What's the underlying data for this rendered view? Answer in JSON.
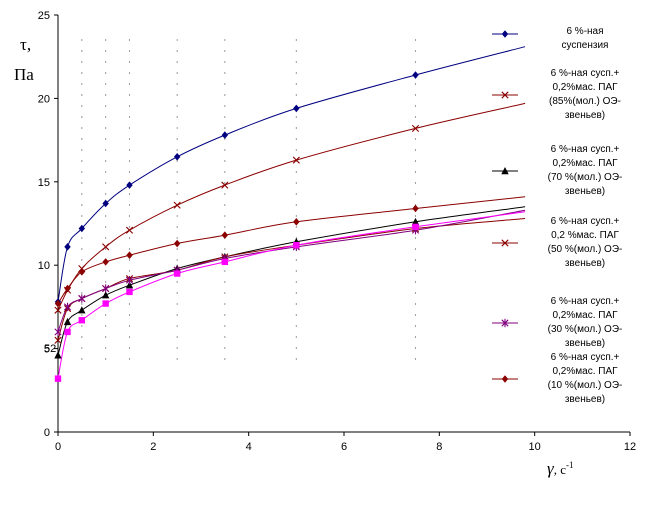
{
  "chart_data": {
    "type": "line",
    "title": "",
    "ylabel_lines": [
      "τ,",
      "Па"
    ],
    "xlabel_symbol": "γ",
    "xlabel_unit": ", с",
    "xlabel_exp": "-1",
    "xlim": [
      0,
      12
    ],
    "ylim": [
      0,
      25
    ],
    "xticks": [
      "0",
      "2",
      "4",
      "6",
      "8",
      "10",
      "12"
    ],
    "yticks": [
      "0",
      "5",
      "10",
      "15",
      "20",
      "25"
    ],
    "legend_position": "right",
    "series": [
      {
        "name": "6 %-ная суспензия",
        "name_lines": [
          "6 %-ная",
          "суспензия"
        ],
        "color": "#000080",
        "marker": "diamond",
        "points": [
          [
            0,
            7.8
          ],
          [
            0.2,
            11.1
          ],
          [
            0.5,
            12.2
          ],
          [
            1.0,
            13.7
          ],
          [
            1.5,
            14.8
          ],
          [
            2.5,
            16.5
          ],
          [
            3.5,
            17.8
          ],
          [
            5.0,
            19.4
          ],
          [
            7.5,
            21.4
          ]
        ],
        "curve": [
          [
            0,
            7.8
          ],
          [
            0.2,
            11.1
          ],
          [
            0.5,
            12.2
          ],
          [
            1.0,
            13.7
          ],
          [
            1.5,
            14.8
          ],
          [
            2.5,
            16.5
          ],
          [
            3.5,
            17.8
          ],
          [
            5.0,
            19.4
          ],
          [
            7.5,
            21.4
          ],
          [
            9.8,
            23.1
          ]
        ]
      },
      {
        "name": "6 %-ная сусп.+ 0,2%мас. ПАГ (85%(мол.) ОЭ-звеньев)",
        "name_lines": [
          "6 %-ная сусп.+",
          "0,2%мас. ПАГ",
          "(85%(мол.) ОЭ-",
          "звеньев)"
        ],
        "color": "#8b0000",
        "marker": "x",
        "points": [
          [
            0,
            7.3
          ],
          [
            0.2,
            8.5
          ],
          [
            0.5,
            9.8
          ],
          [
            1.0,
            11.1
          ],
          [
            1.5,
            12.1
          ],
          [
            2.5,
            13.6
          ],
          [
            3.5,
            14.8
          ],
          [
            5.0,
            16.3
          ],
          [
            7.5,
            18.2
          ]
        ],
        "curve": [
          [
            0,
            7.3
          ],
          [
            0.2,
            8.5
          ],
          [
            0.5,
            9.8
          ],
          [
            1.0,
            11.1
          ],
          [
            1.5,
            12.1
          ],
          [
            2.5,
            13.6
          ],
          [
            3.5,
            14.8
          ],
          [
            5.0,
            16.3
          ],
          [
            7.5,
            18.2
          ],
          [
            9.8,
            19.7
          ]
        ]
      },
      {
        "name": "6 %-ная сусп.+ 0,2%мас. ПАГ (70 %(мол.) ОЭ-звеньев)",
        "name_lines": [
          "6 %-ная сусп.+",
          "0,2%мас. ПАГ",
          "(70 %(мол.) ОЭ-",
          "звеньев)"
        ],
        "color": "#000000",
        "marker": "triangle",
        "points": [
          [
            0,
            4.6
          ],
          [
            0.2,
            6.6
          ],
          [
            0.5,
            7.3
          ],
          [
            1.0,
            8.2
          ],
          [
            1.5,
            8.8
          ],
          [
            2.5,
            9.8
          ],
          [
            3.5,
            10.5
          ],
          [
            5.0,
            11.4
          ],
          [
            7.5,
            12.6
          ]
        ],
        "curve": [
          [
            0,
            4.6
          ],
          [
            0.2,
            6.6
          ],
          [
            0.5,
            7.3
          ],
          [
            1.0,
            8.2
          ],
          [
            1.5,
            8.8
          ],
          [
            2.5,
            9.8
          ],
          [
            3.5,
            10.5
          ],
          [
            5.0,
            11.4
          ],
          [
            7.5,
            12.6
          ],
          [
            9.8,
            13.5
          ]
        ]
      },
      {
        "name": "6 %-ная сусп.+ 0,2 %мас. ПАГ (50 %(мол.) ОЭ-звеньев)",
        "name_lines": [
          "6 %-ная сусп.+",
          "0,2 %мас. ПАГ",
          "(50 %(мол.) ОЭ-",
          "звеньев)"
        ],
        "color": "#8b0000",
        "marker": "x",
        "points": [
          [
            0,
            5.5
          ],
          [
            0.2,
            7.4
          ],
          [
            0.5,
            8.0
          ],
          [
            1.0,
            8.6
          ],
          [
            1.5,
            9.2
          ],
          [
            2.5,
            9.7
          ],
          [
            3.5,
            10.5
          ],
          [
            5.0,
            11.2
          ],
          [
            7.5,
            12.2
          ]
        ],
        "curve": [
          [
            0,
            5.5
          ],
          [
            0.2,
            7.4
          ],
          [
            0.5,
            8.0
          ],
          [
            1.0,
            8.6
          ],
          [
            1.5,
            9.2
          ],
          [
            2.5,
            9.7
          ],
          [
            3.5,
            10.5
          ],
          [
            5.0,
            11.2
          ],
          [
            7.5,
            12.2
          ],
          [
            9.8,
            12.8
          ]
        ]
      },
      {
        "name": "6 %-ная сусп.+ 0,2%мас. ПАГ (30 %(мол.) ОЭ-звеньев)",
        "name_lines": [
          "6 %-ная сусп.+",
          "0,2%мас. ПАГ",
          "(30 %(мол.) ОЭ-",
          "звеньев)"
        ],
        "color": "#800080",
        "marker": "star",
        "points": [
          [
            0,
            6.0
          ],
          [
            0.2,
            7.5
          ],
          [
            0.5,
            8.0
          ],
          [
            1.0,
            8.6
          ],
          [
            1.5,
            9.1
          ],
          [
            2.5,
            9.7
          ],
          [
            3.5,
            10.4
          ],
          [
            5.0,
            11.1
          ],
          [
            7.5,
            12.1
          ]
        ],
        "curve": [
          [
            0,
            6.0
          ],
          [
            0.2,
            7.5
          ],
          [
            0.5,
            8.0
          ],
          [
            1.0,
            8.6
          ],
          [
            1.5,
            9.1
          ],
          [
            2.5,
            9.7
          ],
          [
            3.5,
            10.4
          ],
          [
            5.0,
            11.1
          ],
          [
            7.5,
            12.1
          ],
          [
            9.8,
            13.3
          ]
        ]
      },
      {
        "name": "6 %-ная сусп.+ 0,2%мас. ПАГ (10 %(мол.) ОЭ-звеньев)",
        "name_lines": [
          "6 %-ная сусп.+",
          "0,2%мас. ПАГ",
          "(10 %(мол.) ОЭ-",
          "звеньев)"
        ],
        "color": "#8b0000",
        "marker": "diamond",
        "points": [
          [
            0,
            7.7
          ],
          [
            0.2,
            8.6
          ],
          [
            0.5,
            9.6
          ],
          [
            1.0,
            10.2
          ],
          [
            1.5,
            10.6
          ],
          [
            2.5,
            11.3
          ],
          [
            3.5,
            11.8
          ],
          [
            5.0,
            12.6
          ],
          [
            7.5,
            13.4
          ]
        ],
        "curve": [
          [
            0,
            7.7
          ],
          [
            0.2,
            8.6
          ],
          [
            0.5,
            9.6
          ],
          [
            1.0,
            10.2
          ],
          [
            1.5,
            10.6
          ],
          [
            2.5,
            11.3
          ],
          [
            3.5,
            11.8
          ],
          [
            5.0,
            12.6
          ],
          [
            7.5,
            13.4
          ],
          [
            9.8,
            14.1
          ]
        ]
      },
      {
        "name": "",
        "color": "#ff00ff",
        "marker": "square",
        "in_legend": false,
        "points": [
          [
            0,
            3.2
          ],
          [
            0.2,
            6.0
          ],
          [
            0.5,
            6.7
          ],
          [
            1.0,
            7.7
          ],
          [
            1.5,
            8.4
          ],
          [
            2.5,
            9.5
          ],
          [
            3.5,
            10.2
          ],
          [
            5.0,
            11.2
          ],
          [
            7.5,
            12.3
          ]
        ],
        "curve": [
          [
            0,
            3.2
          ],
          [
            0.2,
            6.0
          ],
          [
            0.5,
            6.7
          ],
          [
            1.0,
            7.7
          ],
          [
            1.5,
            8.4
          ],
          [
            2.5,
            9.5
          ],
          [
            3.5,
            10.2
          ],
          [
            5.0,
            11.2
          ],
          [
            7.5,
            12.3
          ],
          [
            9.8,
            13.2
          ]
        ]
      }
    ],
    "stray_label": "52"
  }
}
